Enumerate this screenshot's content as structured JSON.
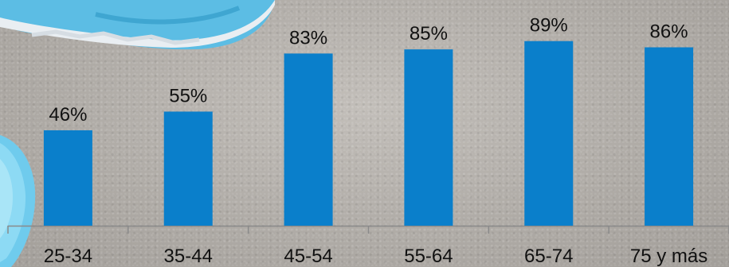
{
  "chart_data": {
    "type": "bar",
    "categories": [
      "25-34",
      "35-44",
      "45-54",
      "55-64",
      "65-74",
      "75 y más"
    ],
    "values": [
      46,
      55,
      83,
      85,
      89,
      86
    ],
    "value_labels": [
      "46%",
      "55%",
      "83%",
      "85%",
      "89%",
      "86%"
    ],
    "ylim": [
      0,
      100
    ],
    "grid": false,
    "legend": "none",
    "title": "",
    "xlabel": "",
    "ylabel": ""
  },
  "colors": {
    "bar": "#0a7fcb",
    "axis": "#8a8a8a",
    "text": "#111111",
    "shoe": "#5fc0e6"
  },
  "background": {
    "icon": "running-shoe-photo"
  }
}
